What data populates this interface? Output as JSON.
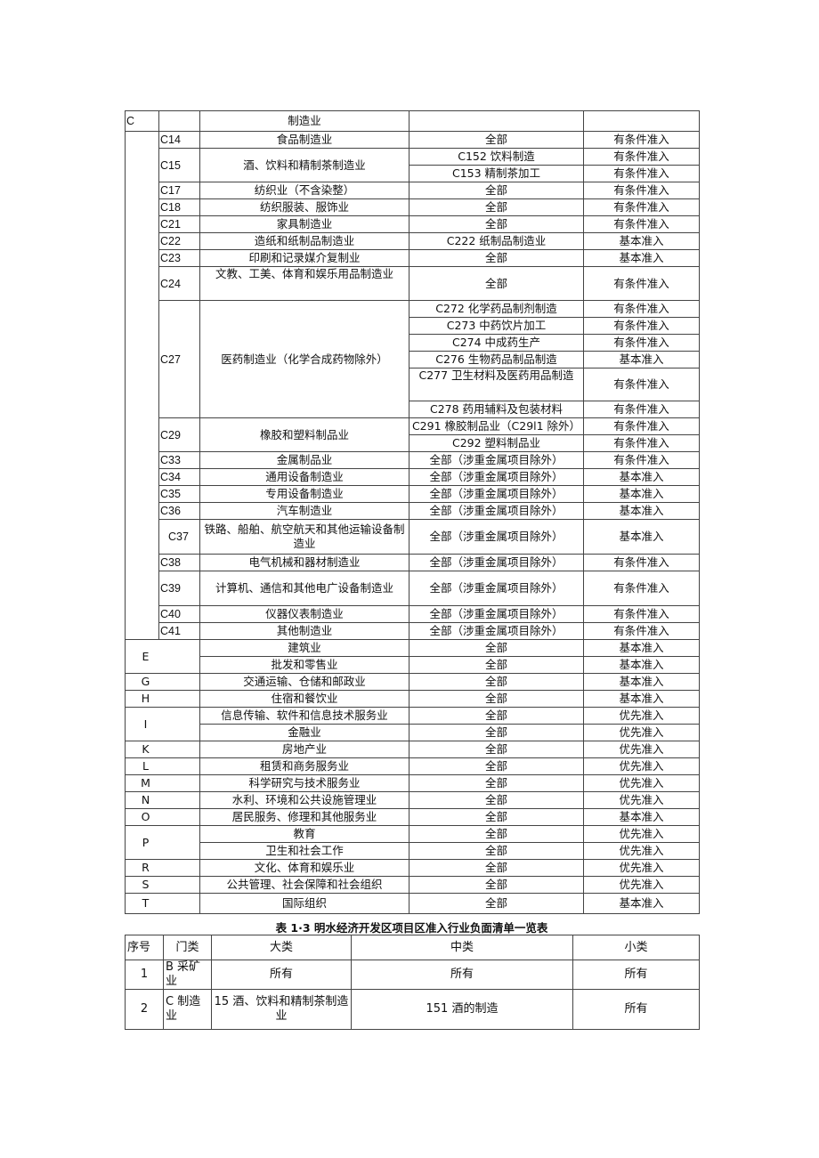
{
  "table1": {
    "header": {
      "code": "C",
      "name": "制造业"
    },
    "manufacturing": [
      {
        "code": "C14",
        "name": "食品制造业",
        "items": [
          {
            "sub": "全部",
            "status": "有条件准入"
          }
        ]
      },
      {
        "code": "C15",
        "name": "酒、饮料和精制茶制造业",
        "items": [
          {
            "sub": "C152 饮料制造",
            "status": "有条件准入"
          },
          {
            "sub": "C153 精制茶加工",
            "status": "有条件准入"
          }
        ]
      },
      {
        "code": "C17",
        "name": "纺织业（不含染整）",
        "items": [
          {
            "sub": "全部",
            "status": "有条件准入"
          }
        ]
      },
      {
        "code": "C18",
        "name": "纺织服装、服饰业",
        "items": [
          {
            "sub": "全部",
            "status": "有条件准入"
          }
        ]
      },
      {
        "code": "C21",
        "name": "家具制造业",
        "items": [
          {
            "sub": "全部",
            "status": "有条件准入"
          }
        ]
      },
      {
        "code": "C22",
        "name": "造纸和纸制品制造业",
        "items": [
          {
            "sub": "C222 纸制品制造业",
            "status": "基本准入"
          }
        ]
      },
      {
        "code": "C23",
        "name": "印刷和记录媒介复制业",
        "items": [
          {
            "sub": "全部",
            "status": "基本准入"
          }
        ]
      },
      {
        "code": "C24",
        "name": "文教、工美、体育和娱乐用品制造业",
        "items": [
          {
            "sub": "全部",
            "status": "有条件准入"
          }
        ]
      },
      {
        "code": "C27",
        "name": "医药制造业（化学合成药物除外）",
        "items": [
          {
            "sub": "C272 化学药品制剂制造",
            "status": "有条件准入"
          },
          {
            "sub": "C273 中药饮片加工",
            "status": "有条件准入"
          },
          {
            "sub": "C274 中成药生产",
            "status": "有条件准入"
          },
          {
            "sub": "C276 生物药品制品制造",
            "status": "基本准入"
          },
          {
            "sub": "C277 卫生材料及医药用品制造",
            "status": "有条件准入"
          },
          {
            "sub": "C278 药用辅料及包装材料",
            "status": "有条件准入"
          }
        ]
      },
      {
        "code": "C29",
        "name": "橡胶和塑料制品业",
        "items": [
          {
            "sub": "C291 橡胶制品业（C29l1 除外）",
            "status": "有条件准入"
          },
          {
            "sub": "C292 塑料制品业",
            "status": "有条件准入"
          }
        ]
      },
      {
        "code": "C33",
        "name": "金属制品业",
        "items": [
          {
            "sub": "全部（涉重金属项目除外）",
            "status": "有条件准入"
          }
        ]
      },
      {
        "code": "C34",
        "name": "通用设备制造业",
        "items": [
          {
            "sub": "全部（涉重金属项目除外）",
            "status": "基本准入"
          }
        ]
      },
      {
        "code": "C35",
        "name": "专用设备制造业",
        "items": [
          {
            "sub": "全部（涉重金属项目除外）",
            "status": "基本准入"
          }
        ]
      },
      {
        "code": "C36",
        "name": "汽车制造业",
        "items": [
          {
            "sub": "全部（涉重金属项目除外）",
            "status": "基本准入"
          }
        ]
      },
      {
        "code": "C37",
        "name": "铁路、船舶、航空航天和其他运输设备制造业",
        "items": [
          {
            "sub": "全部（涉重金属项目除外）",
            "status": "基本准入"
          }
        ]
      },
      {
        "code": "C38",
        "name": "电气机械和器材制造业",
        "items": [
          {
            "sub": "全部（涉重金属项目除外）",
            "status": "有条件准入"
          }
        ]
      },
      {
        "code": "C39",
        "name": "计算机、通信和其他电广设备制造业",
        "items": [
          {
            "sub": "全部（涉重金属项目除外）",
            "status": "有条件准入"
          }
        ]
      },
      {
        "code": "C40",
        "name": "仪器仪表制造业",
        "items": [
          {
            "sub": "全部（涉重金属项目除外）",
            "status": "有条件准入"
          }
        ]
      },
      {
        "code": "C41",
        "name": "其他制造业",
        "items": [
          {
            "sub": "全部（涉重金属项目除外）",
            "status": "有条件准入"
          }
        ]
      }
    ],
    "others": [
      {
        "code": "E",
        "items": [
          {
            "name": "建筑业",
            "sub": "全部",
            "status": "基本准入"
          },
          {
            "name": "批发和零售业",
            "sub": "全部",
            "status": "基本准入"
          }
        ]
      },
      {
        "code": "G",
        "items": [
          {
            "name": "交通运输、仓储和邮政业",
            "sub": "全部",
            "status": "基本准入"
          }
        ]
      },
      {
        "code": "H",
        "items": [
          {
            "name": "住宿和餐饮业",
            "sub": "全部",
            "status": "基本准入"
          }
        ]
      },
      {
        "code": "I",
        "items": [
          {
            "name": "信息传输、软件和信息技术服务业",
            "sub": "全部",
            "status": "优先准入"
          },
          {
            "name": "金融业",
            "sub": "全部",
            "status": "优先准入"
          }
        ]
      },
      {
        "code": "K",
        "items": [
          {
            "name": "房地产业",
            "sub": "全部",
            "status": "优先准入"
          }
        ]
      },
      {
        "code": "L",
        "items": [
          {
            "name": "租赁和商务服务业",
            "sub": "全部",
            "status": "优先准入"
          }
        ]
      },
      {
        "code": "M",
        "items": [
          {
            "name": "科学研究与技术服务业",
            "sub": "全部",
            "status": "优先准入"
          }
        ]
      },
      {
        "code": "N",
        "items": [
          {
            "name": "水利、环境和公共设施管理业",
            "sub": "全部",
            "status": "优先准入"
          }
        ]
      },
      {
        "code": "O",
        "items": [
          {
            "name": "居民服务、修理和其他服务业",
            "sub": "全部",
            "status": "基本准入"
          }
        ]
      },
      {
        "code": "P",
        "items": [
          {
            "name": "教育",
            "sub": "全部",
            "status": "优先准入"
          },
          {
            "name": "卫生和社会工作",
            "sub": "全部",
            "status": "优先准入"
          }
        ]
      },
      {
        "code": "R",
        "items": [
          {
            "name": "文化、体育和娱乐业",
            "sub": "全部",
            "status": "优先准入"
          }
        ]
      },
      {
        "code": "S",
        "items": [
          {
            "name": "公共管理、社会保障和社会组织",
            "sub": "全部",
            "status": "优先准入"
          }
        ]
      },
      {
        "code": "T",
        "items": [
          {
            "name": "国际组织",
            "sub": "全部",
            "status": "基本准入"
          }
        ]
      }
    ]
  },
  "table2": {
    "caption": "表 1·3 明水经济开发区项目区准入行业负面清单一览表",
    "headers": [
      "序号",
      "门类",
      "大类",
      "中类",
      "小类"
    ],
    "rows": [
      [
        "1",
        "B 采矿业",
        "所有",
        "所有",
        "所有"
      ],
      [
        "2",
        "C 制造业",
        "15 酒、饮料和精制茶制造业",
        "151 酒的制造",
        "所有"
      ]
    ]
  }
}
